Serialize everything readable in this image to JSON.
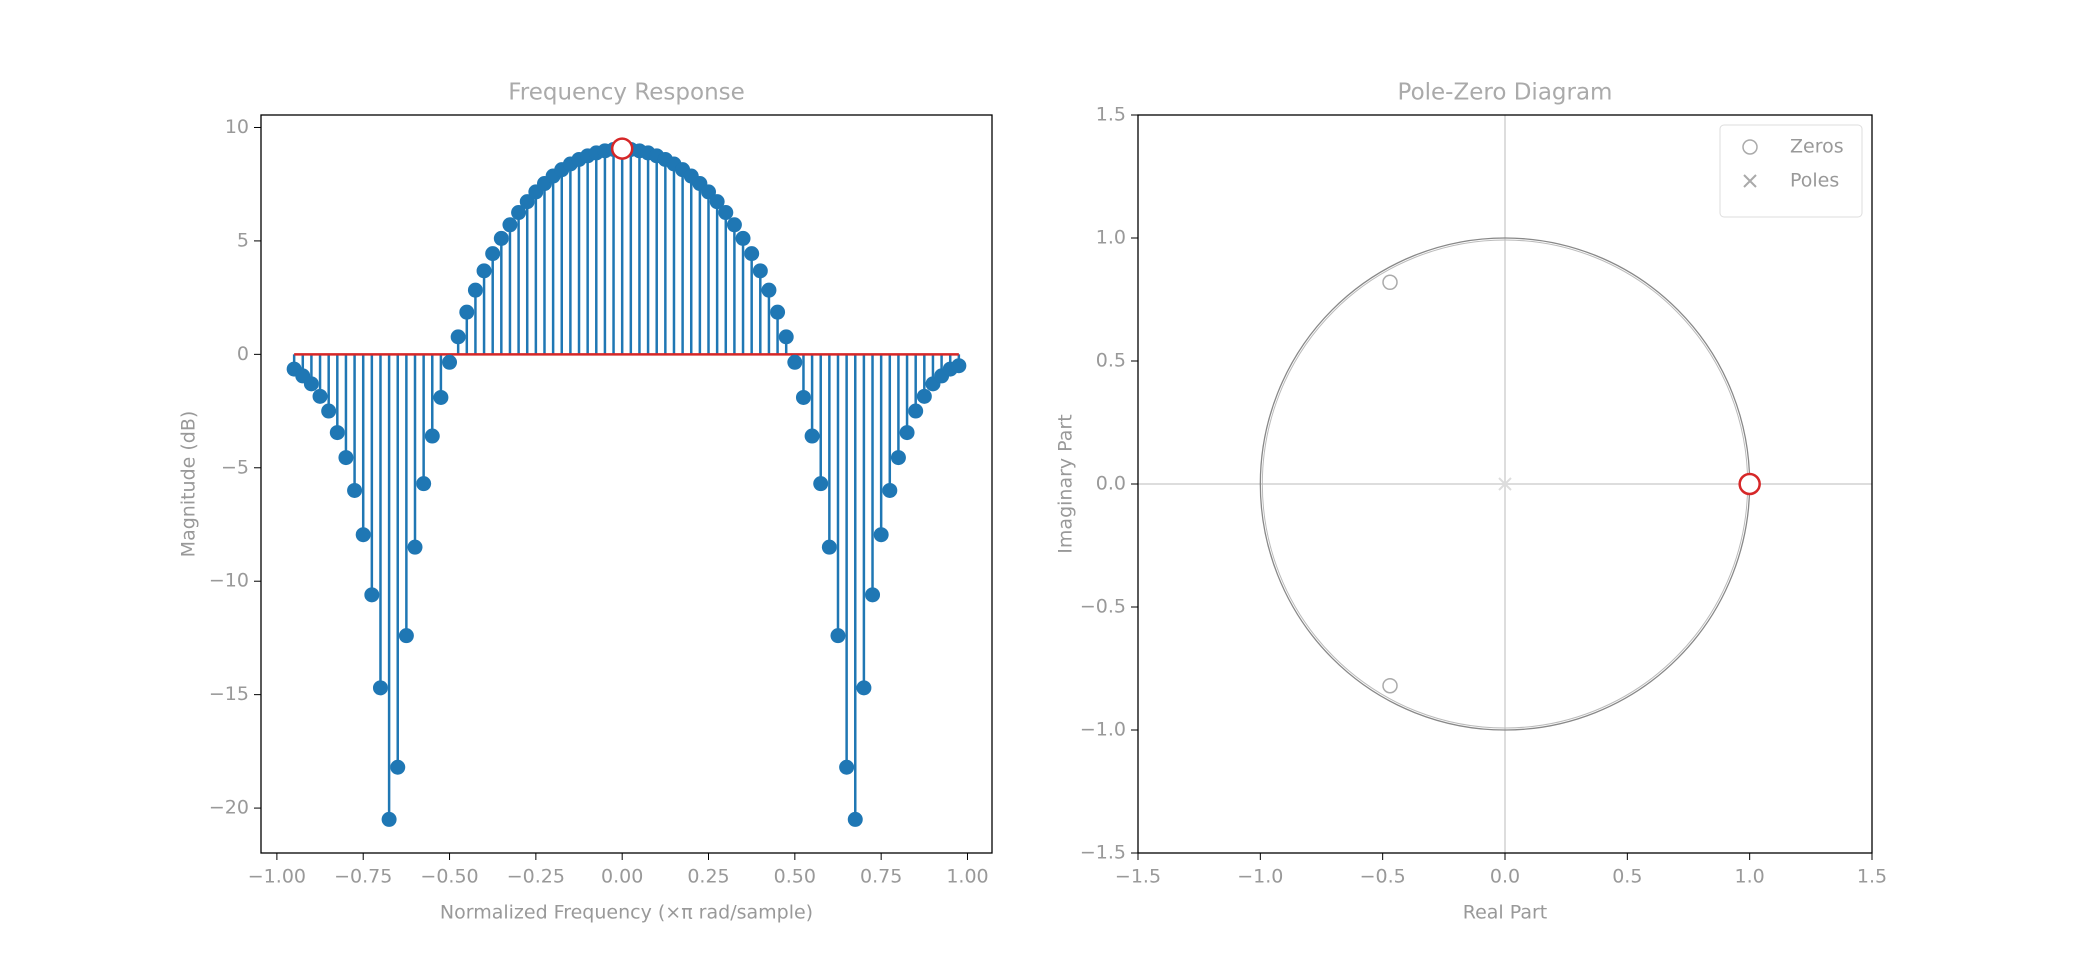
{
  "chart_data": [
    {
      "type": "stem",
      "title": "Frequency Response",
      "x_label": "Normalized Frequency (×π rad/sample)",
      "y_label": "Magnitude (dB)",
      "color": "#1f77b4",
      "baseline_color": "#d62728",
      "x": [
        -0.95,
        -0.925,
        -0.9,
        -0.875,
        -0.85,
        -0.825,
        -0.8,
        -0.775,
        -0.75,
        -0.725,
        -0.7,
        -0.675,
        -0.65,
        -0.625,
        -0.6,
        -0.575,
        -0.55,
        -0.525,
        -0.5,
        -0.475,
        -0.45,
        -0.425,
        -0.4,
        -0.375,
        -0.35,
        -0.325,
        -0.3,
        -0.275,
        -0.25,
        -0.225,
        -0.2,
        -0.175,
        -0.15,
        -0.125,
        -0.1,
        -0.075,
        -0.05,
        -0.025,
        0,
        0.025,
        0.05,
        0.075,
        0.1,
        0.125,
        0.15,
        0.175,
        0.2,
        0.225,
        0.25,
        0.275,
        0.3,
        0.325,
        0.35,
        0.375,
        0.4,
        0.425,
        0.45,
        0.475,
        0.5,
        0.525,
        0.55,
        0.575,
        0.6,
        0.625,
        0.65,
        0.675,
        0.7,
        0.725,
        0.75,
        0.775,
        0.8,
        0.825,
        0.85,
        0.875,
        0.9,
        0.925,
        0.95,
        0.975
      ],
      "values": [
        -0.65,
        -0.95,
        -1.3,
        -1.85,
        -2.5,
        -3.45,
        -4.55,
        -6.0,
        -7.95,
        -10.6,
        -14.7,
        -20.5,
        -18.2,
        -12.4,
        -8.5,
        -5.7,
        -3.6,
        -1.9,
        -0.35,
        0.77,
        1.86,
        2.83,
        3.68,
        4.44,
        5.11,
        5.71,
        6.25,
        6.73,
        7.16,
        7.53,
        7.86,
        8.14,
        8.39,
        8.59,
        8.75,
        8.88,
        8.97,
        9.03,
        9.07,
        9.03,
        8.97,
        8.88,
        8.75,
        8.59,
        8.39,
        8.14,
        7.86,
        7.53,
        7.16,
        6.73,
        6.25,
        5.71,
        5.11,
        4.44,
        3.68,
        2.83,
        1.86,
        0.77,
        -0.35,
        -1.9,
        -3.6,
        -5.7,
        -8.5,
        -12.4,
        -18.2,
        -20.5,
        -14.7,
        -10.6,
        -7.95,
        -6.0,
        -4.55,
        -3.45,
        -2.5,
        -1.85,
        -1.3,
        -0.95,
        -0.65,
        -0.5
      ],
      "markers": [
        {
          "x": 0,
          "y": 9.07,
          "color": "#d62728"
        }
      ],
      "xlim": [
        -1.046,
        1.071
      ],
      "ylim": [
        -21.98,
        10.55
      ],
      "xticks": [
        {
          "value": -1,
          "label": "−1.00"
        },
        {
          "value": -0.75,
          "label": "−0.75"
        },
        {
          "value": -0.5,
          "label": "−0.50"
        },
        {
          "value": -0.25,
          "label": "−0.25"
        },
        {
          "value": 0,
          "label": "0.00"
        },
        {
          "value": 0.25,
          "label": "0.25"
        },
        {
          "value": 0.5,
          "label": "0.50"
        },
        {
          "value": 0.75,
          "label": "0.75"
        },
        {
          "value": 1,
          "label": "1.00"
        }
      ],
      "yticks": [
        {
          "value": -20,
          "label": "−20"
        },
        {
          "value": -15,
          "label": "−15"
        },
        {
          "value": -10,
          "label": "−10"
        },
        {
          "value": -5,
          "label": "−5"
        },
        0,
        5,
        10
      ]
    },
    {
      "type": "pole-zero",
      "title": "Pole-Zero Diagram",
      "x_label": "Real Part",
      "y_label": "Imaginary Part",
      "unit_circle": true,
      "legend": "upper right",
      "series": [
        {
          "name": "Zeros",
          "marker": "o",
          "color": "#aaaaaa",
          "x": [
            -0.47,
            -0.47
          ],
          "y": [
            0.82,
            -0.82
          ]
        },
        {
          "name": "Poles",
          "marker": "x",
          "color": "#dddddd",
          "x": [
            0
          ],
          "y": [
            0
          ]
        }
      ],
      "markers": [
        {
          "x": 1,
          "y": 0,
          "color": "#d62728"
        }
      ],
      "xlim": [
        -1.5,
        1.5
      ],
      "ylim": [
        -1.5,
        1.5
      ],
      "xticks": [
        {
          "value": -1.5,
          "label": "−1.5"
        },
        {
          "value": -1,
          "label": "−1.0"
        },
        {
          "value": -0.5,
          "label": "−0.5"
        },
        {
          "value": 0,
          "label": "0.0"
        },
        0.5,
        {
          "value": 1,
          "label": "1.0"
        },
        1.5
      ],
      "yticks": [
        {
          "value": -1.5,
          "label": "−1.5"
        },
        {
          "value": -1,
          "label": "−1.0"
        },
        {
          "value": -0.5,
          "label": "−0.5"
        },
        {
          "value": 0,
          "label": "0.0"
        },
        0.5,
        {
          "value": 1,
          "label": "1.0"
        },
        1.5
      ]
    }
  ]
}
